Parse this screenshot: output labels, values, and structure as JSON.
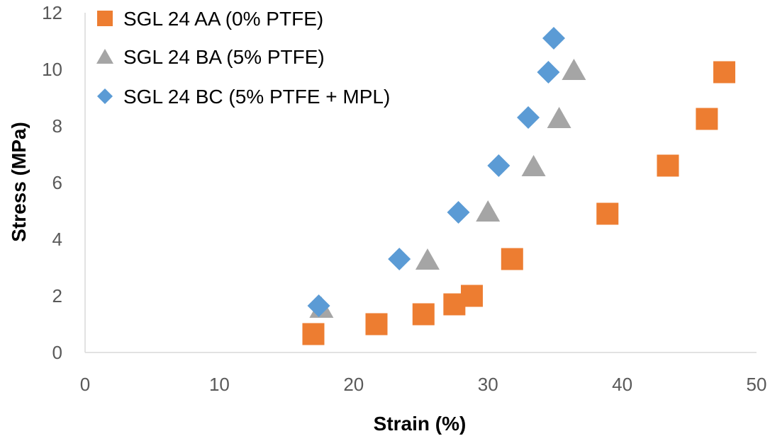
{
  "chart_data": {
    "type": "scatter",
    "xlabel": "Strain (%)",
    "ylabel": "Stress (MPa)",
    "xlim": [
      0,
      50
    ],
    "ylim": [
      0,
      12
    ],
    "xticks": [
      0,
      10,
      20,
      30,
      40,
      50
    ],
    "yticks": [
      0,
      2,
      4,
      6,
      8,
      10,
      12
    ],
    "xtick_labels": [
      "0",
      "10",
      "20",
      "30",
      "40",
      "50"
    ],
    "ytick_labels": [
      "0",
      "2",
      "4",
      "6",
      "8",
      "10",
      "12"
    ],
    "grid": false,
    "legend_position": "top-left",
    "series": [
      {
        "name": "SGL 24 AA (0% PTFE)",
        "marker": "square",
        "color": "#ED7D31",
        "points": [
          [
            17.0,
            0.65
          ],
          [
            21.7,
            1.0
          ],
          [
            25.2,
            1.35
          ],
          [
            27.5,
            1.7
          ],
          [
            28.8,
            2.0
          ],
          [
            31.8,
            3.3
          ],
          [
            38.9,
            4.9
          ],
          [
            43.4,
            6.6
          ],
          [
            46.3,
            8.25
          ],
          [
            47.6,
            9.9
          ]
        ]
      },
      {
        "name": "SGL 24 BA (5% PTFE)",
        "marker": "triangle",
        "color": "#A5A5A5",
        "points": [
          [
            17.6,
            1.6
          ],
          [
            25.5,
            3.3
          ],
          [
            30.0,
            5.0
          ],
          [
            33.4,
            6.6
          ],
          [
            35.3,
            8.3
          ],
          [
            36.4,
            10.0
          ]
        ]
      },
      {
        "name": "SGL 24 BC (5% PTFE + MPL)",
        "marker": "diamond",
        "color": "#5B9BD5",
        "points": [
          [
            17.4,
            1.65
          ],
          [
            23.4,
            3.3
          ],
          [
            27.8,
            4.95
          ],
          [
            30.8,
            6.6
          ],
          [
            33.0,
            8.3
          ],
          [
            34.5,
            9.9
          ],
          [
            34.9,
            11.1
          ]
        ]
      }
    ]
  }
}
